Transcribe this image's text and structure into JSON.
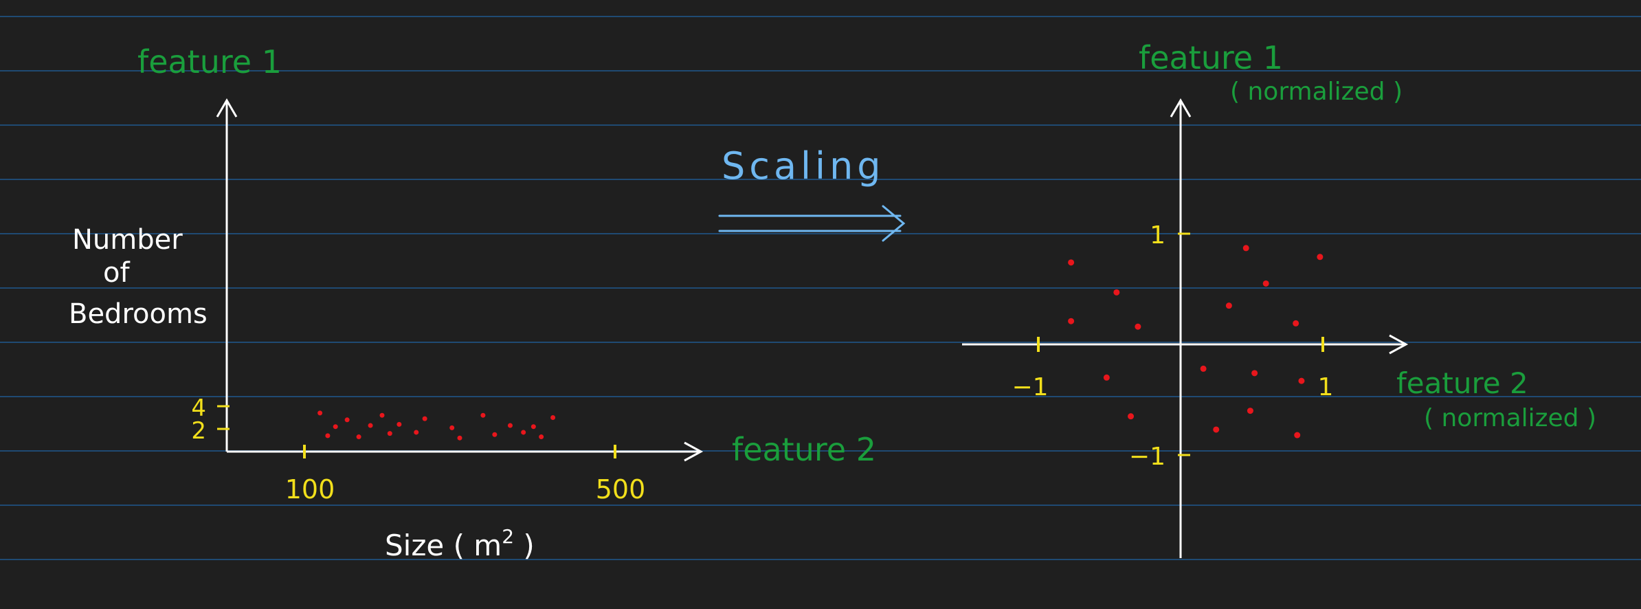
{
  "colors": {
    "background": "#1f1f1f",
    "ruled_line": "#1f4a73",
    "axis": "#ffffff",
    "feature_label": "#1a9e3c",
    "tick": "#f2df1b",
    "point": "#e8161c",
    "scaling": "#6fb7f0"
  },
  "scaling": {
    "label": "Scaling"
  },
  "chart_data": [
    {
      "type": "scatter",
      "title": "",
      "y_axis_name": "feature 1",
      "y_label": "Number of Bedrooms",
      "y_label_lines": [
        "Number",
        "of",
        "Bedrooms"
      ],
      "x_axis_name": "feature 2",
      "x_label": "Size (m²)",
      "x_label_main": "Size ( m",
      "x_label_sup": "2",
      "x_label_close": ")",
      "x_ticks": [
        {
          "value": 100,
          "label": "100"
        },
        {
          "value": 500,
          "label": "500"
        }
      ],
      "y_ticks": [
        {
          "value": 2,
          "label": "2"
        },
        {
          "value": 4,
          "label": "4"
        }
      ],
      "xlim": [
        0,
        600
      ],
      "ylim": [
        0,
        30
      ],
      "grid": false,
      "points": [
        {
          "x": 120,
          "y": 3.4
        },
        {
          "x": 130,
          "y": 1.4
        },
        {
          "x": 140,
          "y": 2.2
        },
        {
          "x": 155,
          "y": 2.8
        },
        {
          "x": 170,
          "y": 1.3
        },
        {
          "x": 185,
          "y": 2.3
        },
        {
          "x": 200,
          "y": 3.2
        },
        {
          "x": 210,
          "y": 1.6
        },
        {
          "x": 222,
          "y": 2.4
        },
        {
          "x": 244,
          "y": 1.7
        },
        {
          "x": 255,
          "y": 2.9
        },
        {
          "x": 290,
          "y": 2.1
        },
        {
          "x": 300,
          "y": 1.2
        },
        {
          "x": 330,
          "y": 3.2
        },
        {
          "x": 345,
          "y": 1.5
        },
        {
          "x": 365,
          "y": 2.3
        },
        {
          "x": 382,
          "y": 1.7
        },
        {
          "x": 405,
          "y": 1.3
        },
        {
          "x": 420,
          "y": 3.0
        },
        {
          "x": 395,
          "y": 2.2
        }
      ]
    },
    {
      "type": "scatter",
      "title": "",
      "y_axis_name": "feature 1",
      "y_axis_sub": "( normalized )",
      "x_axis_name": "feature 2",
      "x_axis_sub": "( normalized )",
      "x_ticks": [
        {
          "value": -1,
          "label": "−1"
        },
        {
          "value": 1,
          "label": "1"
        }
      ],
      "y_ticks": [
        {
          "value": 1,
          "label": "1"
        },
        {
          "value": -1,
          "label": "−1"
        }
      ],
      "xlim": [
        -1.2,
        2.0
      ],
      "ylim": [
        -1.9,
        2.2
      ],
      "grid": false,
      "points": [
        {
          "x": -0.77,
          "y": 0.74
        },
        {
          "x": -0.45,
          "y": 0.47
        },
        {
          "x": -0.77,
          "y": 0.21
        },
        {
          "x": -0.3,
          "y": 0.16
        },
        {
          "x": 0.46,
          "y": 0.87
        },
        {
          "x": 0.6,
          "y": 0.55
        },
        {
          "x": 0.98,
          "y": 0.79
        },
        {
          "x": 0.34,
          "y": 0.35
        },
        {
          "x": 0.81,
          "y": 0.19
        },
        {
          "x": -0.52,
          "y": -0.3
        },
        {
          "x": 0.16,
          "y": -0.22
        },
        {
          "x": 0.52,
          "y": -0.26
        },
        {
          "x": 0.85,
          "y": -0.33
        },
        {
          "x": -0.35,
          "y": -0.65
        },
        {
          "x": 0.49,
          "y": -0.6
        },
        {
          "x": 0.25,
          "y": -0.77
        },
        {
          "x": 0.82,
          "y": -0.82
        }
      ]
    }
  ]
}
